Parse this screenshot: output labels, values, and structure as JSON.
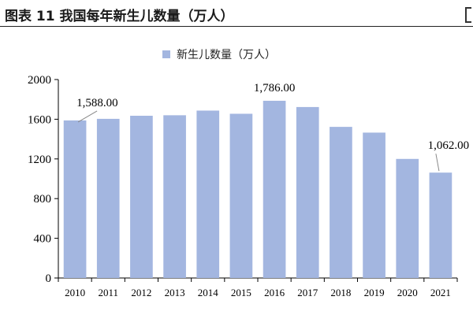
{
  "header": {
    "title": "图表 11 我国每年新生儿数量（万人）"
  },
  "chart_data": {
    "type": "bar",
    "title": "",
    "xlabel": "",
    "ylabel": "",
    "categories": [
      "2010",
      "2011",
      "2012",
      "2013",
      "2014",
      "2015",
      "2016",
      "2017",
      "2018",
      "2019",
      "2020",
      "2021"
    ],
    "series": [
      {
        "name": "新生儿数量（万人）",
        "values": [
          1588,
          1604,
          1635,
          1640,
          1687,
          1655,
          1786,
          1723,
          1523,
          1465,
          1200,
          1062
        ]
      }
    ],
    "ylim": [
      0,
      2000
    ],
    "yticks": [
      "0",
      "400",
      "800",
      "1200",
      "1600",
      "2000"
    ],
    "data_labels": [
      {
        "category": "2010",
        "text": "1,588.00"
      },
      {
        "category": "2016",
        "text": "1,786.00"
      },
      {
        "category": "2021",
        "text": "1,062.00"
      }
    ],
    "legend_position": "top-center",
    "grid": false,
    "bar_color": "#a3b6e0"
  }
}
